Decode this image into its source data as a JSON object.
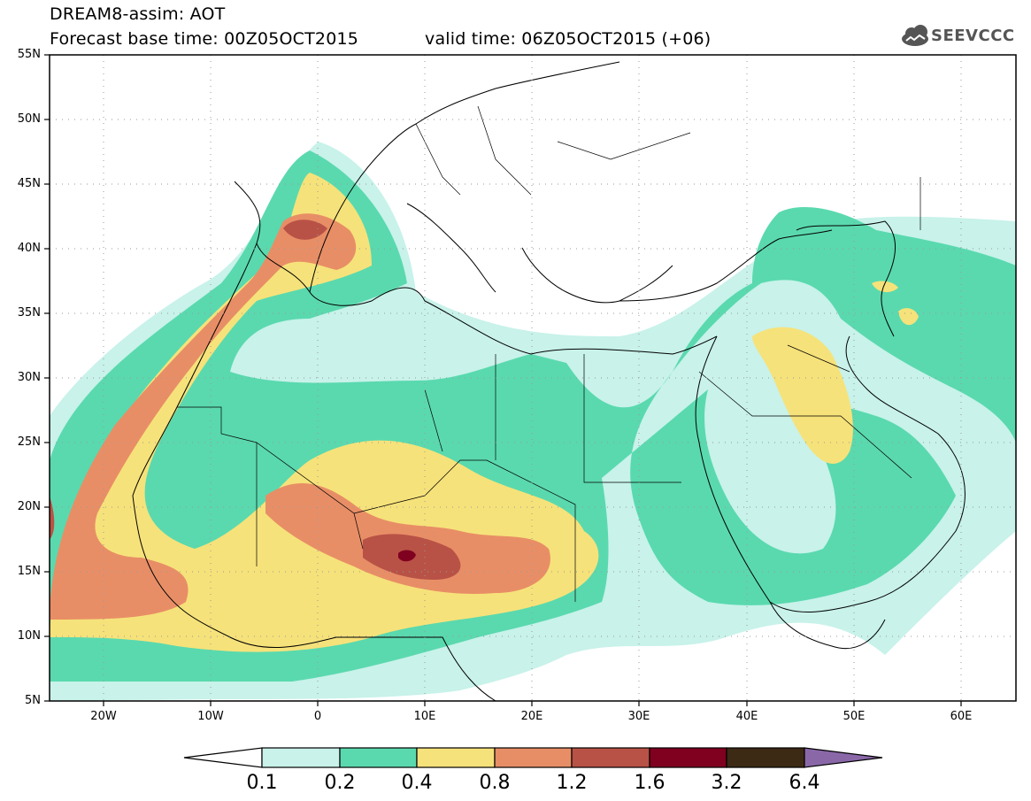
{
  "header": {
    "title_line1": "DREAM8-assim: AOT",
    "base_time": "Forecast base time: 00Z05OCT2015",
    "valid_time": "valid time: 06Z05OCT2015 (+06)",
    "logo_text": "SEEVCCC"
  },
  "map": {
    "projection": "lat-lon",
    "lon_range": [
      -25,
      65
    ],
    "lat_range": [
      5,
      55
    ],
    "lat_labels": [
      "55N",
      "50N",
      "45N",
      "40N",
      "35N",
      "30N",
      "25N",
      "20N",
      "15N",
      "10N",
      "5N"
    ],
    "lon_labels": [
      "20W",
      "10W",
      "0",
      "10E",
      "20E",
      "30E",
      "40E",
      "50E",
      "60E"
    ],
    "grid": "dotted"
  },
  "colorbar": {
    "levels": [
      "0.1",
      "0.2",
      "0.4",
      "0.8",
      "1.2",
      "1.6",
      "3.2",
      "6.4"
    ],
    "colors": [
      "#c8f2ea",
      "#5ad9ae",
      "#f6e27a",
      "#e88e66",
      "#b85246",
      "#800020",
      "#3d2a14",
      "#8a68a8"
    ]
  }
}
